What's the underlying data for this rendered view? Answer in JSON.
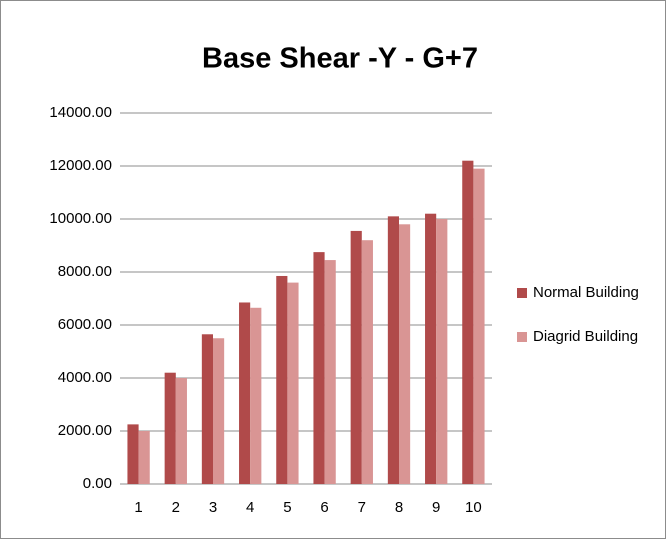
{
  "chart_data": {
    "type": "bar",
    "title": "Base Shear -Y - G+7",
    "categories": [
      "1",
      "2",
      "3",
      "4",
      "5",
      "6",
      "7",
      "8",
      "9",
      "10"
    ],
    "series": [
      {
        "name": "Normal Building",
        "color": "#b04a4a",
        "values": [
          2250,
          4200,
          5650,
          6850,
          7850,
          8750,
          9550,
          10100,
          10200,
          12200
        ]
      },
      {
        "name": "Diagrid Building",
        "color": "#d99594",
        "values": [
          2000,
          4000,
          5500,
          6650,
          7600,
          8450,
          9200,
          9800,
          10000,
          11900
        ]
      }
    ],
    "ylim": [
      0,
      14000
    ],
    "yticks": [
      {
        "value": 0,
        "label": "0.00"
      },
      {
        "value": 2000,
        "label": "2000.00"
      },
      {
        "value": 4000,
        "label": "4000.00"
      },
      {
        "value": 6000,
        "label": "6000.00"
      },
      {
        "value": 8000,
        "label": "8000.00"
      },
      {
        "value": 10000,
        "label": "10000.00"
      },
      {
        "value": 12000,
        "label": "12000.00"
      },
      {
        "value": 14000,
        "label": "14000.00"
      }
    ],
    "grid": true,
    "legend": "right"
  }
}
